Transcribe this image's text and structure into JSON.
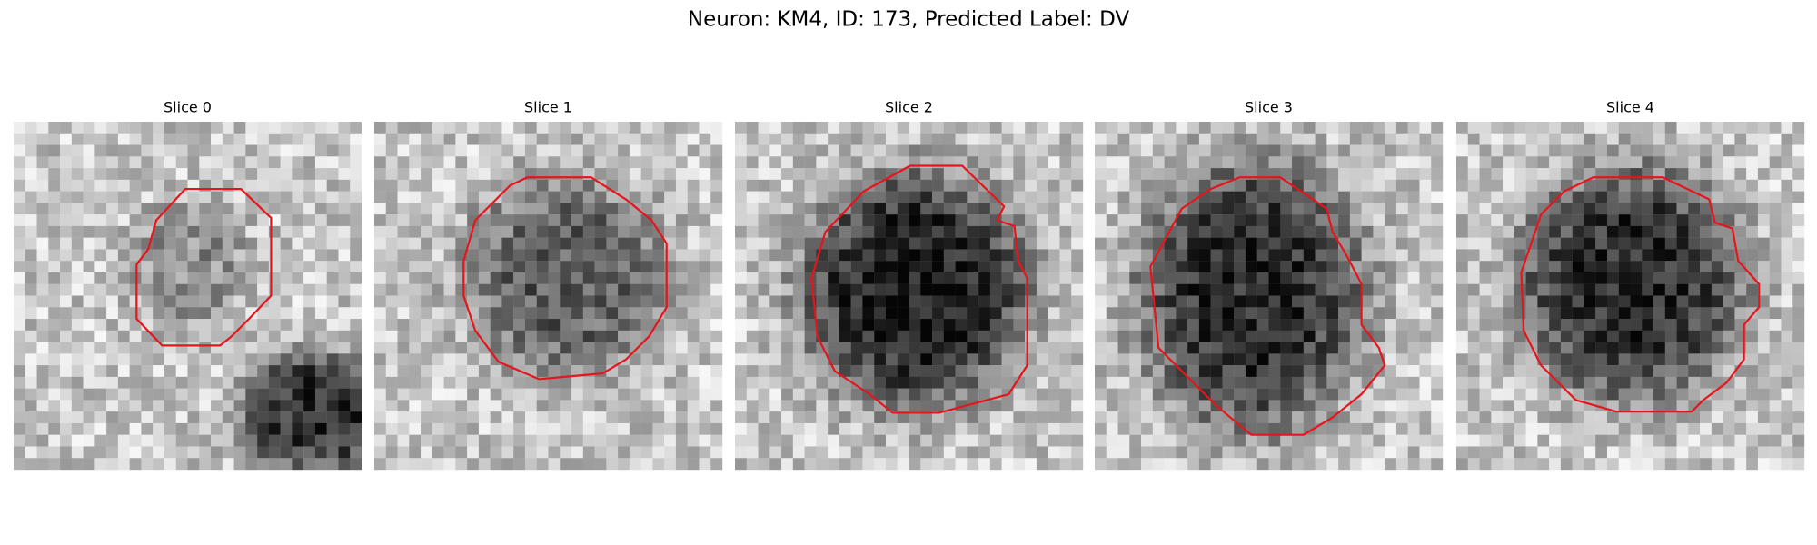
{
  "title": "Neuron: KM4, ID: 173, Predicted Label: DV",
  "panels": [
    {
      "title": "Slice 0"
    },
    {
      "title": "Slice 1"
    },
    {
      "title": "Slice 2"
    },
    {
      "title": "Slice 3"
    },
    {
      "title": "Slice 4"
    }
  ]
}
